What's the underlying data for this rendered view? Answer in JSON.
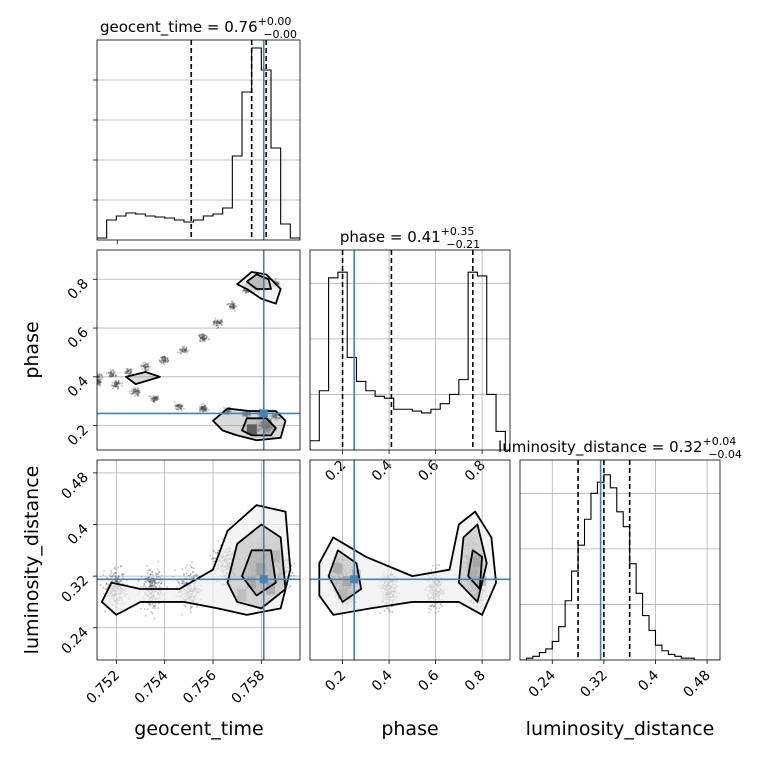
{
  "colors": {
    "truth": "#4682b4",
    "hist": "#000000",
    "grid": "#b0b0b0",
    "quantile": "#000000"
  },
  "chart_data": [
    {
      "type": "area",
      "panel": "geocent_time-hist",
      "title": {
        "main": "geocent_time = 0.76",
        "sup": "+0.00",
        "sub": "−0.00"
      },
      "xlim": [
        0.7512,
        0.7596
      ],
      "x": [
        0.7512,
        0.7516,
        0.752,
        0.7524,
        0.7528,
        0.7532,
        0.7536,
        0.754,
        0.7544,
        0.7548,
        0.7552,
        0.7556,
        0.756,
        0.7564,
        0.7568,
        0.7572,
        0.7576,
        0.758,
        0.7584,
        0.7588,
        0.7592,
        0.7596
      ],
      "values": [
        0.01,
        0.1,
        0.12,
        0.135,
        0.13,
        0.12,
        0.115,
        0.11,
        0.1,
        0.09,
        0.1,
        0.12,
        0.13,
        0.16,
        0.42,
        0.74,
        0.96,
        0.85,
        0.46,
        0.08,
        0.01,
        0.0
      ],
      "ymax": 1.0,
      "quantiles": [
        0.7551,
        0.7576,
        0.7582
      ],
      "truth": 0.7581,
      "yticks": [
        0.2,
        0.4,
        0.6,
        0.8
      ]
    },
    {
      "type": "area",
      "panel": "phase-hist",
      "title": {
        "main": "phase = 0.41",
        "sup": "+0.35",
        "sub": "−0.21"
      },
      "xlim": [
        0.06,
        0.92
      ],
      "x": [
        0.06,
        0.1,
        0.14,
        0.18,
        0.22,
        0.26,
        0.3,
        0.34,
        0.38,
        0.42,
        0.46,
        0.5,
        0.54,
        0.58,
        0.62,
        0.66,
        0.7,
        0.74,
        0.78,
        0.82,
        0.86,
        0.9
      ],
      "values": [
        0.05,
        0.32,
        0.93,
        0.96,
        0.5,
        0.37,
        0.32,
        0.29,
        0.28,
        0.22,
        0.22,
        0.21,
        0.2,
        0.22,
        0.25,
        0.3,
        0.38,
        0.96,
        0.94,
        0.3,
        0.1,
        0.0
      ],
      "ymax": 1.08,
      "quantiles": [
        0.2,
        0.41,
        0.76
      ],
      "truth": 0.25,
      "xticks": [
        0.2,
        0.4,
        0.6,
        0.8
      ]
    },
    {
      "type": "area",
      "panel": "luminosity_distance-hist",
      "title": {
        "main": "luminosity_distance = 0.32",
        "sup": "+0.04",
        "sub": "−0.04"
      },
      "xlim": [
        0.19,
        0.5
      ],
      "x": [
        0.19,
        0.2,
        0.21,
        0.22,
        0.23,
        0.24,
        0.25,
        0.26,
        0.27,
        0.28,
        0.29,
        0.3,
        0.31,
        0.32,
        0.33,
        0.34,
        0.35,
        0.36,
        0.37,
        0.38,
        0.39,
        0.4,
        0.41,
        0.42,
        0.43,
        0.44,
        0.45,
        0.46,
        0.47,
        0.48,
        0.49,
        0.5
      ],
      "values": [
        0.0,
        0.01,
        0.02,
        0.04,
        0.06,
        0.1,
        0.18,
        0.32,
        0.48,
        0.62,
        0.76,
        0.9,
        0.96,
        1.0,
        0.93,
        0.8,
        0.72,
        0.52,
        0.36,
        0.24,
        0.16,
        0.08,
        0.05,
        0.03,
        0.02,
        0.01,
        0.01,
        0.0,
        0.0,
        0.0,
        0.0,
        0.0
      ],
      "ymax": 1.08,
      "quantiles": [
        0.28,
        0.32,
        0.36
      ],
      "truth": 0.315,
      "xticks": [
        0.24,
        0.32,
        0.4,
        0.48
      ]
    },
    {
      "type": "heatmap",
      "panel": "phase-vs-geocent_time",
      "xlim": [
        0.7512,
        0.7596
      ],
      "ylim": [
        0.1,
        0.92
      ],
      "yticks": [
        0.2,
        0.4,
        0.6,
        0.8
      ],
      "ylabel": "phase",
      "truth": [
        0.7581,
        0.25
      ],
      "ridge": [
        [
          0.7512,
          0.4
        ],
        [
          0.7518,
          0.41
        ],
        [
          0.7525,
          0.42
        ],
        [
          0.7532,
          0.44
        ],
        [
          0.754,
          0.47
        ],
        [
          0.7548,
          0.51
        ],
        [
          0.7556,
          0.56
        ],
        [
          0.7562,
          0.62
        ],
        [
          0.7568,
          0.69
        ],
        [
          0.7574,
          0.76
        ],
        [
          0.758,
          0.8
        ],
        [
          0.7586,
          0.78
        ]
      ],
      "ridge2": [
        [
          0.7512,
          0.38
        ],
        [
          0.752,
          0.37
        ],
        [
          0.7528,
          0.34
        ],
        [
          0.7536,
          0.31
        ],
        [
          0.7546,
          0.28
        ],
        [
          0.7556,
          0.27
        ],
        [
          0.7566,
          0.26
        ],
        [
          0.7574,
          0.25
        ],
        [
          0.758,
          0.25
        ],
        [
          0.7586,
          0.24
        ]
      ],
      "contours": [
        [
          [
            0.757,
            0.78
          ],
          [
            0.7576,
            0.83
          ],
          [
            0.7582,
            0.82
          ],
          [
            0.7588,
            0.76
          ],
          [
            0.7586,
            0.7
          ],
          [
            0.758,
            0.72
          ],
          [
            0.7574,
            0.76
          ]
        ],
        [
          [
            0.7574,
            0.79
          ],
          [
            0.7578,
            0.82
          ],
          [
            0.7583,
            0.8
          ],
          [
            0.7584,
            0.76
          ],
          [
            0.7578,
            0.76
          ]
        ],
        [
          [
            0.756,
            0.22
          ],
          [
            0.7566,
            0.27
          ],
          [
            0.7575,
            0.26
          ],
          [
            0.7586,
            0.26
          ],
          [
            0.759,
            0.22
          ],
          [
            0.7588,
            0.15
          ],
          [
            0.7578,
            0.14
          ],
          [
            0.757,
            0.16
          ],
          [
            0.7564,
            0.18
          ]
        ],
        [
          [
            0.7572,
            0.18
          ],
          [
            0.7574,
            0.23
          ],
          [
            0.7582,
            0.23
          ],
          [
            0.7586,
            0.19
          ],
          [
            0.7584,
            0.16
          ],
          [
            0.7576,
            0.16
          ]
        ],
        [
          [
            0.7528,
            0.37
          ],
          [
            0.7524,
            0.4
          ],
          [
            0.7532,
            0.42
          ],
          [
            0.7538,
            0.4
          ]
        ]
      ]
    },
    {
      "type": "heatmap",
      "panel": "luminosity_distance-vs-geocent_time",
      "xlim": [
        0.7512,
        0.7596
      ],
      "ylim": [
        0.19,
        0.5
      ],
      "xticks": [
        0.752,
        0.754,
        0.756,
        0.758
      ],
      "yticks": [
        0.24,
        0.32,
        0.4,
        0.48
      ],
      "xlabel": "geocent_time",
      "ylabel": "luminosity_distance",
      "truth": [
        0.7581,
        0.315
      ],
      "contours": [
        [
          [
            0.7514,
            0.28
          ],
          [
            0.7518,
            0.31
          ],
          [
            0.753,
            0.3
          ],
          [
            0.7546,
            0.3
          ],
          [
            0.756,
            0.33
          ],
          [
            0.7566,
            0.39
          ],
          [
            0.7578,
            0.43
          ],
          [
            0.759,
            0.42
          ],
          [
            0.7592,
            0.33
          ],
          [
            0.7588,
            0.27
          ],
          [
            0.7574,
            0.26
          ],
          [
            0.7562,
            0.27
          ],
          [
            0.7548,
            0.28
          ],
          [
            0.753,
            0.28
          ],
          [
            0.752,
            0.26
          ]
        ],
        [
          [
            0.7566,
            0.31
          ],
          [
            0.757,
            0.37
          ],
          [
            0.758,
            0.4
          ],
          [
            0.7588,
            0.38
          ],
          [
            0.759,
            0.3
          ],
          [
            0.758,
            0.27
          ],
          [
            0.757,
            0.28
          ]
        ],
        [
          [
            0.7572,
            0.32
          ],
          [
            0.7576,
            0.36
          ],
          [
            0.7584,
            0.36
          ],
          [
            0.7586,
            0.31
          ],
          [
            0.7578,
            0.29
          ]
        ]
      ]
    },
    {
      "type": "heatmap",
      "panel": "luminosity_distance-vs-phase",
      "xlim": [
        0.06,
        0.92
      ],
      "ylim": [
        0.19,
        0.5
      ],
      "xticks": [
        0.2,
        0.4,
        0.6,
        0.8
      ],
      "xlabel": "phase",
      "truth": [
        0.25,
        0.315
      ],
      "contours": [
        [
          [
            0.1,
            0.34
          ],
          [
            0.16,
            0.38
          ],
          [
            0.3,
            0.35
          ],
          [
            0.5,
            0.32
          ],
          [
            0.66,
            0.33
          ],
          [
            0.7,
            0.4
          ],
          [
            0.77,
            0.42
          ],
          [
            0.84,
            0.38
          ],
          [
            0.86,
            0.31
          ],
          [
            0.8,
            0.26
          ],
          [
            0.7,
            0.28
          ],
          [
            0.5,
            0.28
          ],
          [
            0.32,
            0.27
          ],
          [
            0.16,
            0.26
          ],
          [
            0.1,
            0.29
          ]
        ],
        [
          [
            0.14,
            0.32
          ],
          [
            0.18,
            0.36
          ],
          [
            0.26,
            0.34
          ],
          [
            0.28,
            0.3
          ],
          [
            0.2,
            0.28
          ]
        ],
        [
          [
            0.7,
            0.31
          ],
          [
            0.72,
            0.38
          ],
          [
            0.78,
            0.4
          ],
          [
            0.82,
            0.34
          ],
          [
            0.78,
            0.28
          ]
        ],
        [
          [
            0.74,
            0.32
          ],
          [
            0.76,
            0.36
          ],
          [
            0.8,
            0.35
          ],
          [
            0.79,
            0.3
          ]
        ]
      ]
    }
  ]
}
